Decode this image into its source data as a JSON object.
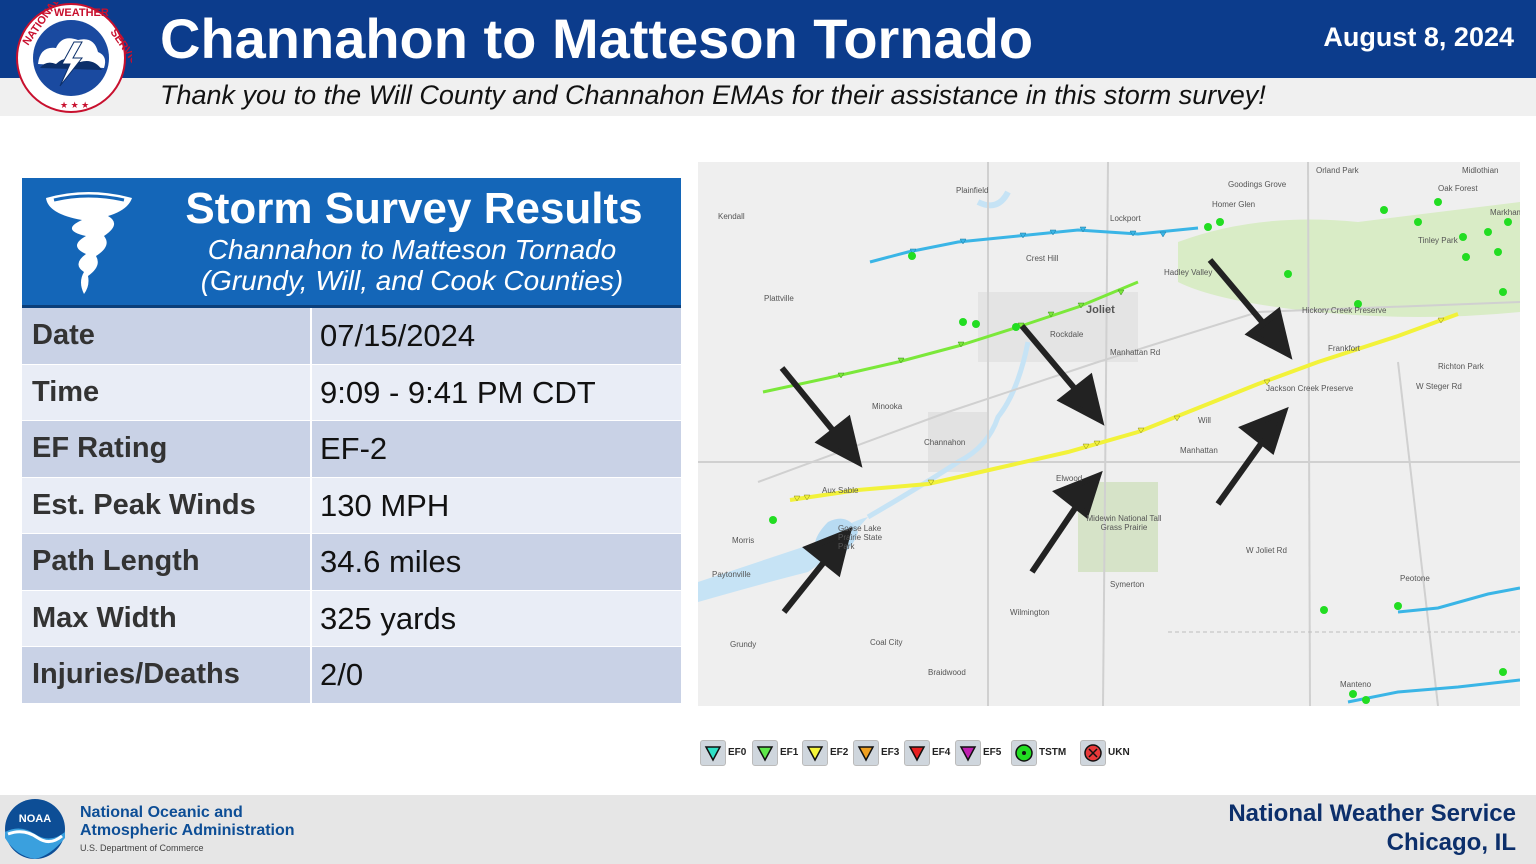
{
  "header": {
    "title": "Channahon to Matteson Tornado",
    "date": "August 8, 2024",
    "thanks": "Thank you to the Will County and Channahon EMAs for their assistance in this storm survey!"
  },
  "nws_logo": {
    "ring_text": "NATIONAL WEATHER SERVICE"
  },
  "card": {
    "title": "Storm Survey Results",
    "subtitle_line1": "Channahon to Matteson Tornado",
    "subtitle_line2": "(Grundy, Will, and Cook Counties)",
    "rows": [
      {
        "label": "Date",
        "value": "07/15/2024"
      },
      {
        "label": "Time",
        "value": "9:09 - 9:41 PM CDT"
      },
      {
        "label": "EF Rating",
        "value": "EF-2"
      },
      {
        "label": "Est. Peak Winds",
        "value": "130 MPH"
      },
      {
        "label": "Path Length",
        "value": "34.6 miles"
      },
      {
        "label": "Max Width",
        "value": "325 yards"
      },
      {
        "label": "Injuries/Deaths",
        "value": "2/0"
      }
    ]
  },
  "map": {
    "places": [
      "Orland Park",
      "Midlothian",
      "Goodings Grove",
      "Oak Forest",
      "Homer Glen",
      "Markham",
      "Plainfield",
      "Lockport",
      "Tinley Park",
      "Kendall",
      "Crest Hill",
      "Hadley Valley",
      "Plattville",
      "Joliet",
      "Hickory Creek Preserve",
      "Rockdale",
      "Frankfort",
      "Richton Park",
      "Manhattan Rd",
      "W Steger Rd",
      "Minooka",
      "Jackson Creek Preserve",
      "Will",
      "Channahon",
      "Manhattan",
      "Aux Sable",
      "Elwood",
      "Midewin National Tall Grass Prairie",
      "Morris",
      "Goose Lake Prairie State Park",
      "W Joliet Rd",
      "Paytonville",
      "Peotone",
      "Symerton",
      "Wilmington",
      "Grundy",
      "Coal City",
      "Braidwood",
      "Manteno"
    ],
    "colors": {
      "ef0": "#3ab5e6",
      "ef1": "#7be83a",
      "ef2": "#f2f23a",
      "tstm": "#22dd22",
      "water": "#c6e3f5",
      "road": "#cfcfcf",
      "park": "#d6e3c8"
    }
  },
  "legend": [
    {
      "label": "EF0",
      "color": "#2fe0c6"
    },
    {
      "label": "EF1",
      "color": "#5ee84a"
    },
    {
      "label": "EF2",
      "color": "#f5f53a"
    },
    {
      "label": "EF3",
      "color": "#f0a020"
    },
    {
      "label": "EF4",
      "color": "#e82020"
    },
    {
      "label": "EF5",
      "color": "#c020b0"
    },
    {
      "label": "TSTM",
      "color": "#22dd22"
    },
    {
      "label": "UKN",
      "color": "#e83a3a"
    }
  ],
  "footer": {
    "noaa_line1": "National Oceanic and",
    "noaa_line2": "Atmospheric Administration",
    "noaa_line3": "U.S. Department of Commerce",
    "noaa_badge": "NOAA",
    "nws_line1": "National Weather Service",
    "nws_line2": "Chicago, IL"
  }
}
